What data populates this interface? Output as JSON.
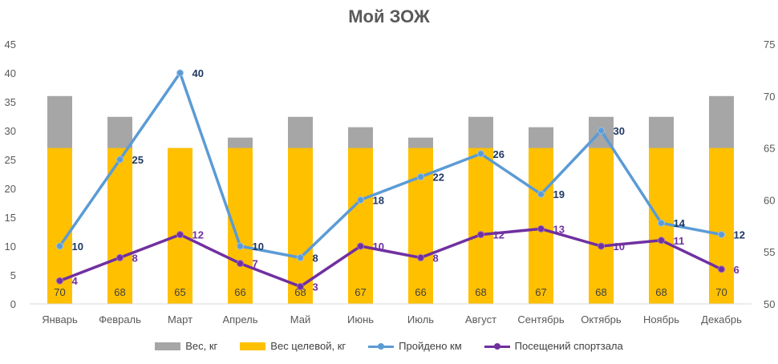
{
  "chart_data": {
    "type": "bar",
    "title": "Мой ЗОЖ",
    "categories": [
      "Январь",
      "Февраль",
      "Март",
      "Апрель",
      "Май",
      "Июнь",
      "Июль",
      "Август",
      "Сентябрь",
      "Октябрь",
      "Ноябрь",
      "Декабрь"
    ],
    "series": [
      {
        "name": "Вес, кг",
        "type": "bar",
        "axis": "right",
        "color": "#a6a6a6",
        "values": [
          70,
          68,
          65,
          66,
          68,
          67,
          66,
          68,
          67,
          68,
          68,
          70
        ]
      },
      {
        "name": "Вес целевой, кг",
        "type": "bar",
        "axis": "right",
        "color": "#ffc000",
        "values": [
          65,
          65,
          65,
          65,
          65,
          65,
          65,
          65,
          65,
          65,
          65,
          65
        ]
      },
      {
        "name": "Пройдено км",
        "type": "line",
        "axis": "left",
        "color": "#5b9bd5",
        "label_color": "#1f3864",
        "values": [
          10,
          25,
          40,
          10,
          8,
          18,
          22,
          26,
          19,
          30,
          14,
          12
        ]
      },
      {
        "name": "Посещений спортзала",
        "type": "line",
        "axis": "left",
        "color": "#7030a0",
        "label_color": "#7030a0",
        "values": [
          4,
          8,
          12,
          7,
          3,
          10,
          8,
          12,
          13,
          10,
          11,
          6
        ]
      }
    ],
    "bar_labels": [
      70,
      68,
      65,
      66,
      68,
      67,
      66,
      68,
      67,
      68,
      68,
      70
    ],
    "y_left": {
      "ylim": [
        0,
        45
      ],
      "ticks": [
        0,
        5,
        10,
        15,
        20,
        25,
        30,
        35,
        40,
        45
      ]
    },
    "y_right": {
      "ylim": [
        50,
        75
      ],
      "ticks": [
        50,
        55,
        60,
        65,
        70,
        75
      ]
    },
    "grid": false,
    "legend_position": "bottom"
  }
}
